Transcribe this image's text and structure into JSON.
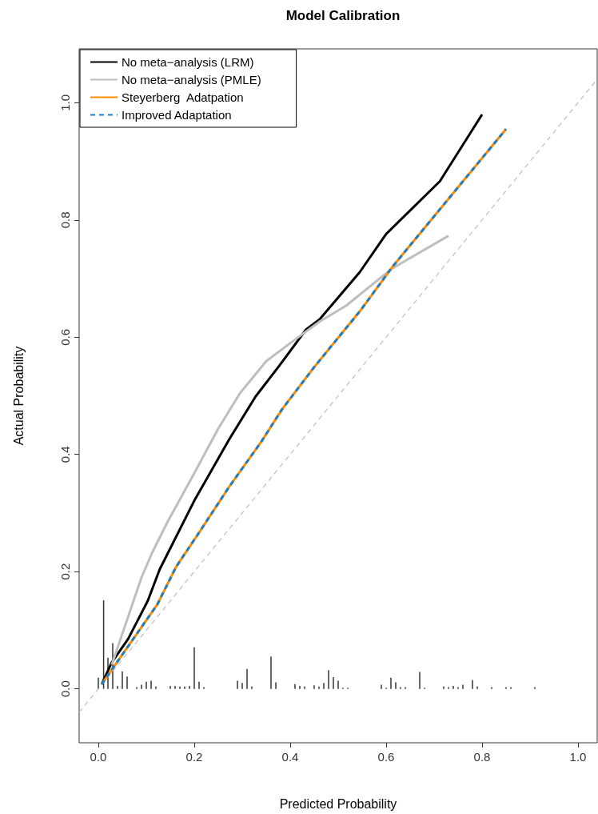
{
  "chart_data": {
    "type": "line",
    "title": "Model Calibration",
    "xlabel": "Predicted Probability",
    "ylabel": "Actual Probability",
    "xlim": [
      -0.04,
      1.04
    ],
    "ylim": [
      -0.092,
      1.092
    ],
    "xticks": [
      {
        "value": 0,
        "label": "0.0"
      },
      {
        "value": 0.2,
        "label": "0.2"
      },
      {
        "value": 0.4,
        "label": "0.4"
      },
      {
        "value": 0.6,
        "label": "0.6"
      },
      {
        "value": 0.8,
        "label": "0.8"
      },
      {
        "value": 1,
        "label": "1.0"
      }
    ],
    "yticks": [
      {
        "value": 0,
        "label": "0.0"
      },
      {
        "value": 0.2,
        "label": "0.2"
      },
      {
        "value": 0.4,
        "label": "0.4"
      },
      {
        "value": 0.6,
        "label": "0.6"
      },
      {
        "value": 0.8,
        "label": "0.8"
      },
      {
        "value": 1,
        "label": "1.0"
      }
    ],
    "grid": false,
    "legend": "top left",
    "marker": "none",
    "series": [
      {
        "type": "bar",
        "color": "#333333",
        "x": [
          0.0,
          0.011,
          0.02,
          0.03,
          0.04,
          0.05,
          0.06,
          0.08,
          0.09,
          0.1,
          0.11,
          0.12,
          0.15,
          0.16,
          0.17,
          0.18,
          0.19,
          0.2,
          0.21,
          0.22,
          0.29,
          0.3,
          0.31,
          0.32,
          0.36,
          0.37,
          0.41,
          0.42,
          0.43,
          0.45,
          0.46,
          0.47,
          0.48,
          0.49,
          0.5,
          0.51,
          0.52,
          0.59,
          0.6,
          0.61,
          0.62,
          0.63,
          0.64,
          0.67,
          0.68,
          0.72,
          0.73,
          0.74,
          0.75,
          0.76,
          0.78,
          0.79,
          0.82,
          0.85,
          0.86,
          0.91
        ],
        "values": [
          0.019,
          0.151,
          0.053,
          0.078,
          0.005,
          0.03,
          0.021,
          0.003,
          0.007,
          0.012,
          0.014,
          0.004,
          0.005,
          0.005,
          0.004,
          0.004,
          0.005,
          0.071,
          0.012,
          0.003,
          0.014,
          0.01,
          0.034,
          0.004,
          0.055,
          0.011,
          0.008,
          0.005,
          0.004,
          0.006,
          0.004,
          0.01,
          0.032,
          0.02,
          0.014,
          0.002,
          0.002,
          0.007,
          0.002,
          0.019,
          0.011,
          0.003,
          0.003,
          0.029,
          0.002,
          0.004,
          0.003,
          0.005,
          0.003,
          0.007,
          0.015,
          0.004,
          0.003,
          0.003,
          0.003,
          0.003
        ]
      },
      {
        "color": "#bebebe",
        "line_style": "dashed",
        "x": [
          -0.04,
          1.04
        ],
        "values": [
          -0.04,
          1.04
        ]
      },
      {
        "name": "No meta−analysis (LRM)",
        "color": "#000000",
        "line_style": "solid",
        "x": [
          0.007,
          0.028,
          0.062,
          0.103,
          0.128,
          0.2,
          0.273,
          0.328,
          0.378,
          0.433,
          0.462,
          0.545,
          0.6,
          0.712,
          0.8
        ],
        "values": [
          0.008,
          0.045,
          0.085,
          0.15,
          0.204,
          0.321,
          0.426,
          0.499,
          0.552,
          0.613,
          0.631,
          0.711,
          0.776,
          0.866,
          0.98
        ]
      },
      {
        "name": "No meta−analysis (PMLE)",
        "color": "#bebebe",
        "line_style": "solid",
        "x": [
          0.028,
          0.09,
          0.112,
          0.145,
          0.2,
          0.25,
          0.295,
          0.35,
          0.407,
          0.462,
          0.517,
          0.612,
          0.73
        ],
        "values": [
          0.041,
          0.19,
          0.232,
          0.286,
          0.368,
          0.444,
          0.504,
          0.559,
          0.594,
          0.627,
          0.654,
          0.717,
          0.773
        ]
      },
      {
        "name": "Steyerberg  Adatpation",
        "color": "#ff8c00",
        "line_style": "solid",
        "x": [
          0.007,
          0.123,
          0.162,
          0.207,
          0.273,
          0.34,
          0.383,
          0.45,
          0.545,
          0.615,
          0.85
        ],
        "values": [
          0.008,
          0.144,
          0.208,
          0.263,
          0.345,
          0.422,
          0.477,
          0.549,
          0.644,
          0.722,
          0.955
        ]
      },
      {
        "name": "Improved Adaptation",
        "color": "#1f7fc4",
        "line_style": "dashed",
        "x": [
          0.007,
          0.123,
          0.162,
          0.207,
          0.273,
          0.34,
          0.383,
          0.45,
          0.545,
          0.615,
          0.85
        ],
        "values": [
          0.008,
          0.144,
          0.208,
          0.263,
          0.345,
          0.422,
          0.477,
          0.549,
          0.644,
          0.722,
          0.955
        ]
      }
    ]
  }
}
